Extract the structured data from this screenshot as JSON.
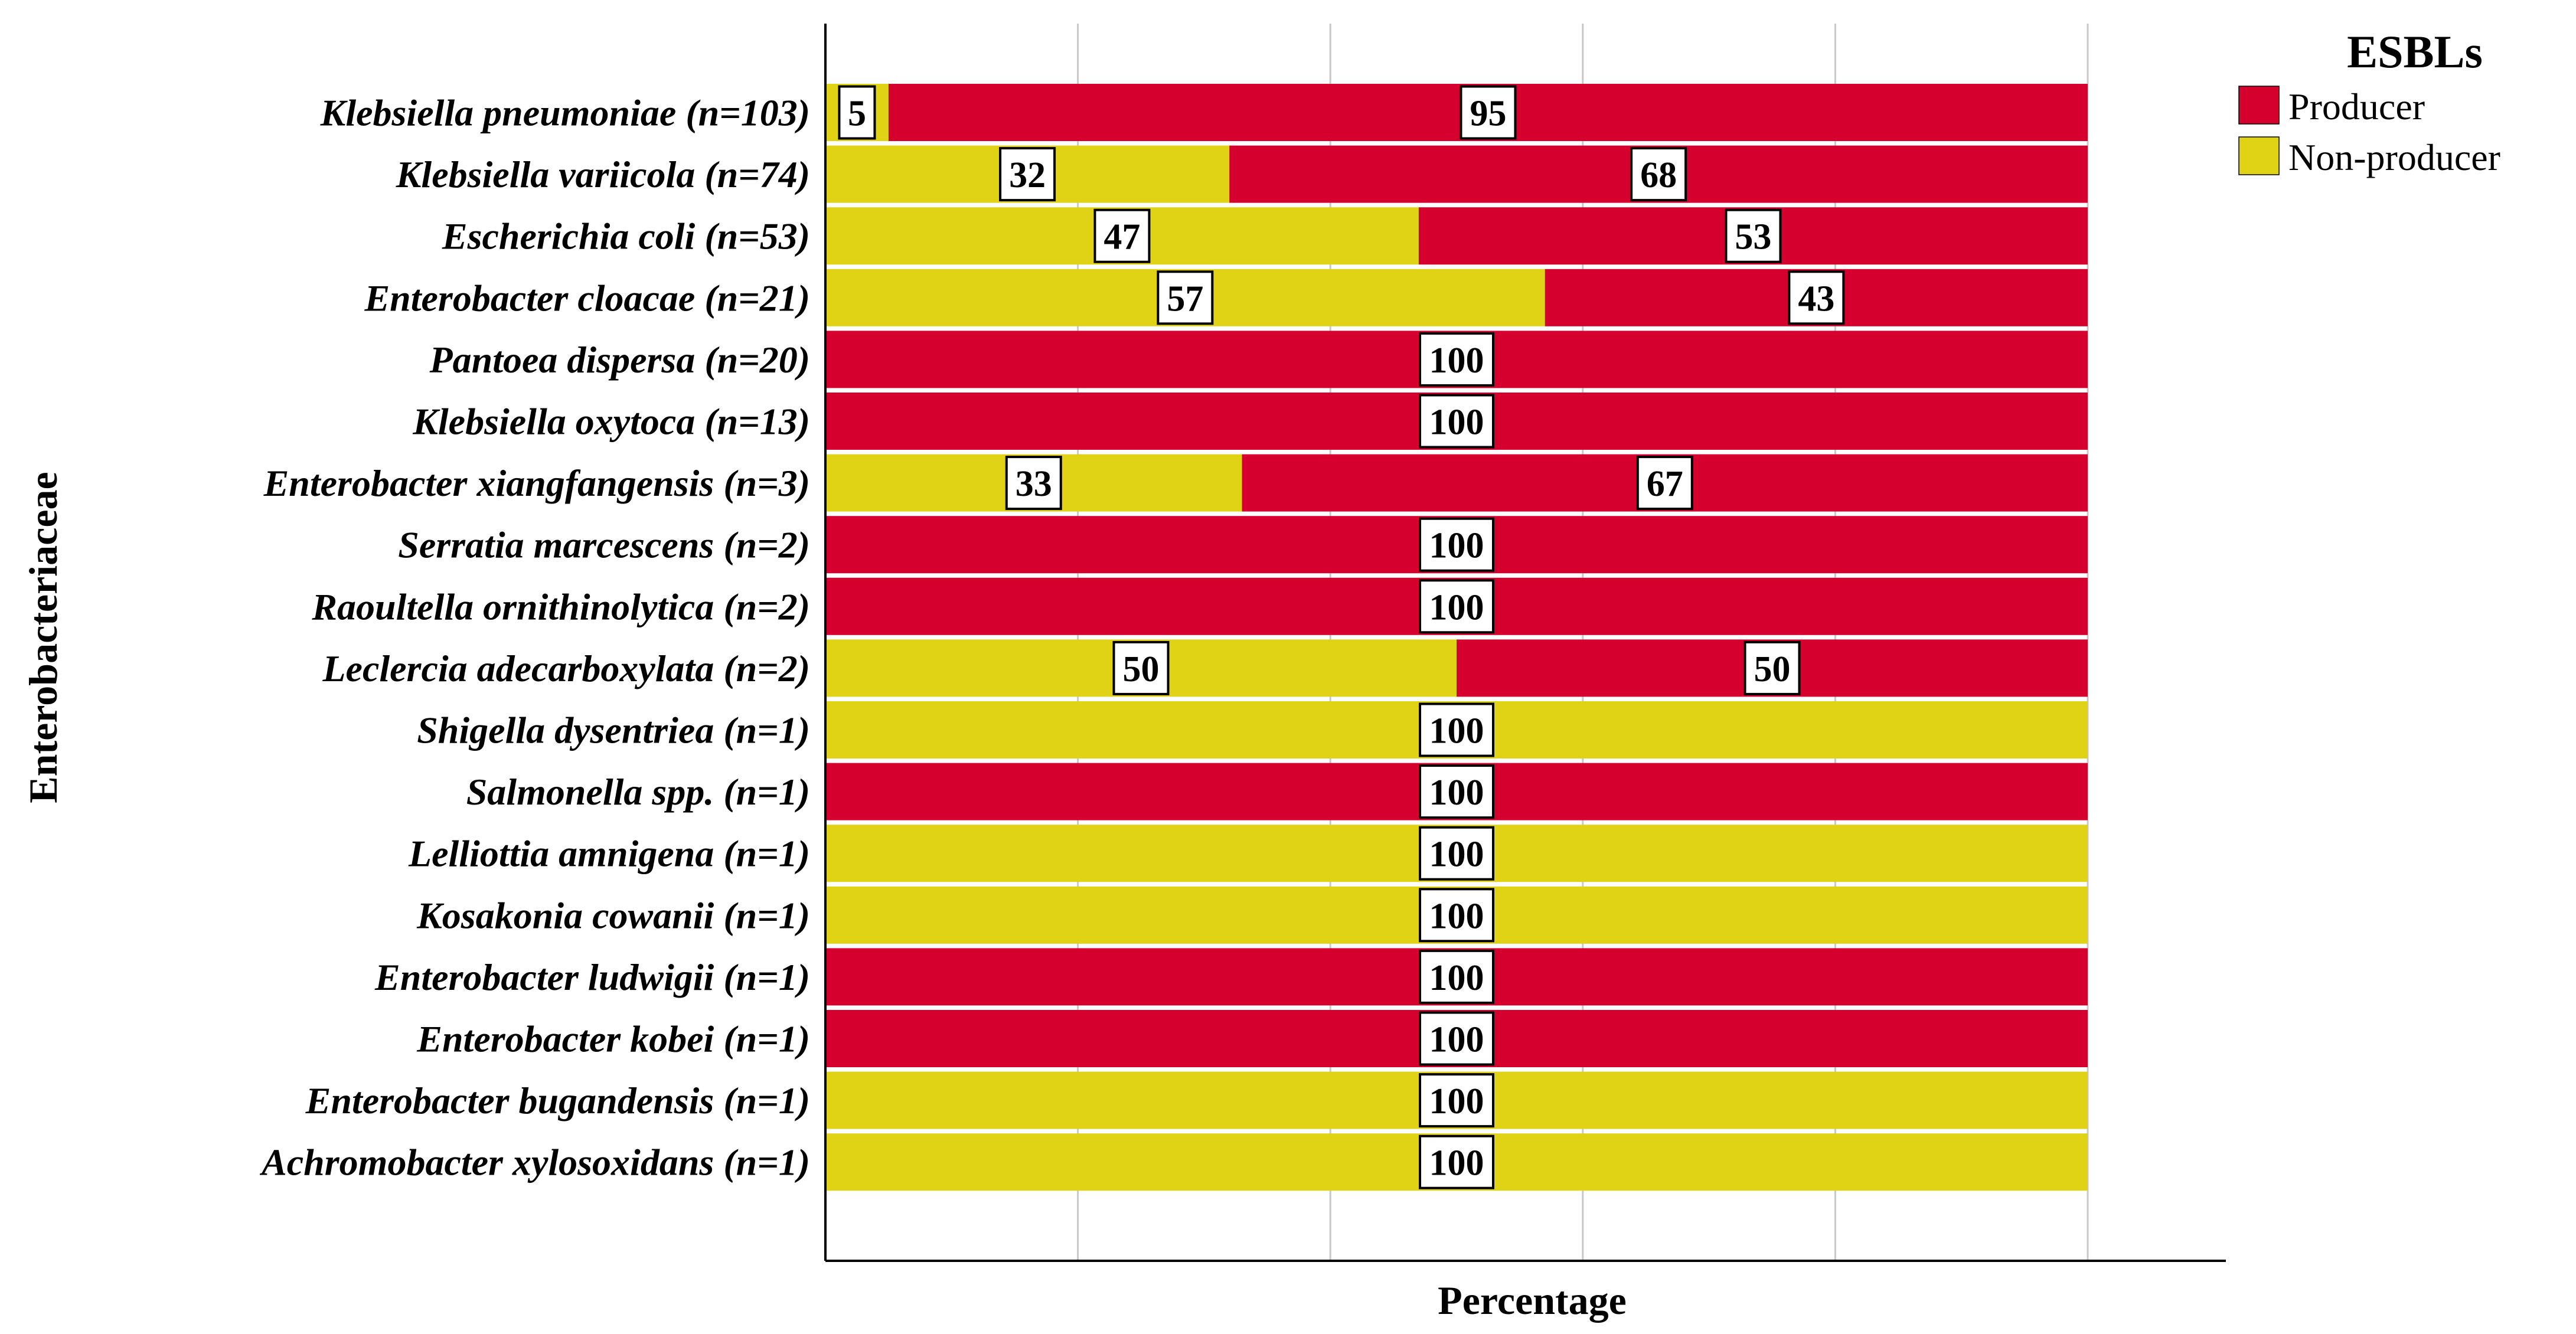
{
  "chart_data": {
    "type": "bar",
    "orientation": "horizontal",
    "stacked": true,
    "title": "",
    "xlabel": "Percentage",
    "ylabel": "Enterobacteriaceae",
    "xlim": [
      0,
      100
    ],
    "grid": true,
    "categories": [
      "Klebsiella pneumoniae (n=103)",
      "Klebsiella variicola (n=74)",
      "Escherichia coli (n=53)",
      "Enterobacter cloacae (n=21)",
      "Pantoea dispersa (n=20)",
      "Klebsiella oxytoca (n=13)",
      "Enterobacter xiangfangensis (n=3)",
      "Serratia marcescens (n=2)",
      "Raoultella ornithinolytica (n=2)",
      "Leclercia adecarboxylata (n=2)",
      "Shigella dysentriea (n=1)",
      "Salmonella spp. (n=1)",
      "Lelliottia amnigena (n=1)",
      "Kosakonia cowanii (n=1)",
      "Enterobacter ludwigii (n=1)",
      "Enterobacter kobei (n=1)",
      "Enterobacter bugandensis (n=1)",
      "Achromobacter xylosoxidans (n=1)"
    ],
    "series": [
      {
        "name": "Non-producer",
        "color": "#E0D215",
        "values": [
          5,
          32,
          47,
          57,
          0,
          0,
          33,
          0,
          0,
          50,
          100,
          0,
          100,
          100,
          0,
          0,
          100,
          100
        ]
      },
      {
        "name": "Producer",
        "color": "#D6002F",
        "values": [
          95,
          68,
          53,
          43,
          100,
          100,
          67,
          100,
          100,
          50,
          0,
          100,
          0,
          0,
          100,
          100,
          0,
          0
        ]
      }
    ],
    "legend": {
      "title": "ESBLs",
      "position": "top-right",
      "entries": [
        "Producer",
        "Non-producer"
      ]
    }
  }
}
